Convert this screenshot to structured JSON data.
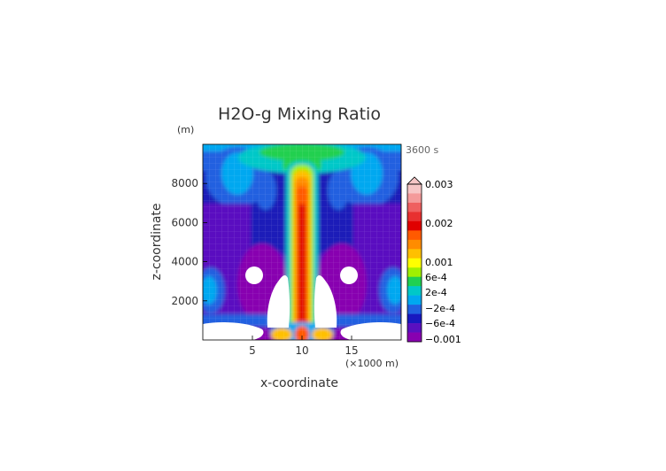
{
  "chart_data": {
    "type": "heatmap",
    "title": "H2O-g Mixing Ratio",
    "xlabel": "x-coordinate",
    "ylabel": "z-coordinate",
    "x_unit": "(×1000 m)",
    "y_unit": "(m)",
    "time_label": "3600 s",
    "x_range": [
      0,
      20
    ],
    "y_range": [
      0,
      10000
    ],
    "x_ticks": [
      {
        "value": 5,
        "label": "5"
      },
      {
        "value": 10,
        "label": "10"
      },
      {
        "value": 15,
        "label": "15"
      }
    ],
    "y_ticks": [
      {
        "value": 2000,
        "label": "2000"
      },
      {
        "value": 4000,
        "label": "4000"
      },
      {
        "value": 6000,
        "label": "6000"
      },
      {
        "value": 8000,
        "label": "8000"
      }
    ],
    "grid": true,
    "colorbar": {
      "labels": [
        "0.003",
        "0.002",
        "0.001",
        "6e-4",
        "2e-4",
        "−2e-4",
        "−6e-4",
        "−0.001"
      ],
      "colors": [
        "#f7c6c6",
        "#f49a9a",
        "#ef6060",
        "#e83030",
        "#e00000",
        "#ff5a00",
        "#ff8c00",
        "#ffc000",
        "#ffff00",
        "#a0f000",
        "#20d050",
        "#00c8c8",
        "#00a8f0",
        "#2060e0",
        "#1818c0",
        "#5a10c0",
        "#8800b0"
      ]
    }
  }
}
